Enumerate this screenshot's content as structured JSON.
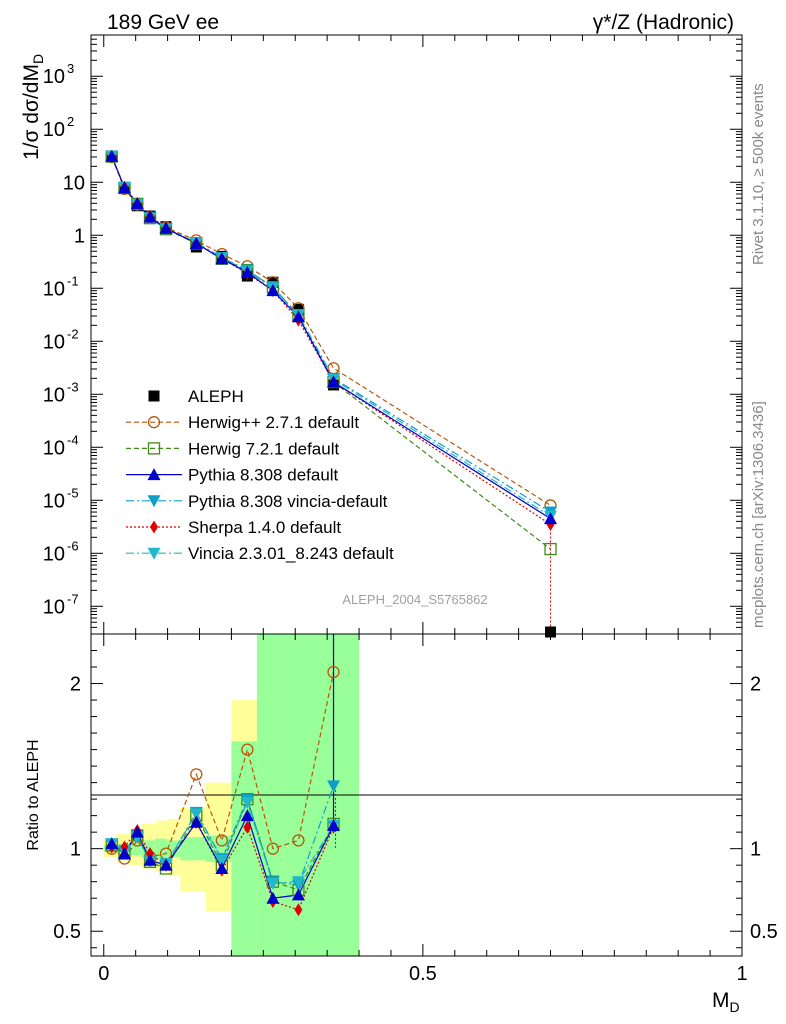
{
  "header": {
    "left_title": "189 GeV ee",
    "right_title": "γ*/Z (Hadronic)"
  },
  "side_labels": {
    "rivet": "Rivet 3.1.10, ≥ 500k events",
    "mcplots": "mcplots.cern.ch [arXiv:1306.3436]"
  },
  "watermark": "ALEPH_2004_S5765862",
  "chart_data": [
    {
      "type": "scatter",
      "title": "189 GeV ee",
      "ylabel": "1/σ dσ/dM_D",
      "yscale": "log",
      "ylim": [
        3e-08,
        6000
      ],
      "xlim": [
        -0.02,
        1.0
      ],
      "yticks": [
        {
          "v": 1e-07,
          "base": "10",
          "exp": "-7"
        },
        {
          "v": 1e-06,
          "base": "10",
          "exp": "-6"
        },
        {
          "v": 1e-05,
          "base": "10",
          "exp": "-5"
        },
        {
          "v": 0.0001,
          "base": "10",
          "exp": "-4"
        },
        {
          "v": 0.001,
          "base": "10",
          "exp": "-3"
        },
        {
          "v": 0.01,
          "base": "10",
          "exp": "-2"
        },
        {
          "v": 0.1,
          "base": "10",
          "exp": "-1"
        },
        {
          "v": 1,
          "base": "1",
          "exp": ""
        },
        {
          "v": 10,
          "base": "10",
          "exp": ""
        },
        {
          "v": 100,
          "base": "10",
          "exp": "2"
        },
        {
          "v": 1000,
          "base": "10",
          "exp": "3"
        }
      ],
      "x": [
        0.0125,
        0.0325,
        0.0525,
        0.0725,
        0.0975,
        0.145,
        0.185,
        0.225,
        0.265,
        0.305,
        0.36,
        0.7
      ],
      "series": [
        {
          "name": "ALEPH",
          "color": "#000000",
          "marker": "square-filled",
          "dash": "none",
          "values": [
            30,
            8.0,
            3.6,
            2.3,
            1.45,
            0.6,
            0.4,
            0.17,
            0.13,
            0.04,
            0.0015,
            3e-08
          ]
        },
        {
          "name": "Herwig++ 2.7.1 default",
          "color": "#b8560a",
          "marker": "circle-open",
          "dash": "5,3",
          "values": [
            30,
            7.5,
            3.8,
            2.2,
            1.4,
            0.8,
            0.44,
            0.26,
            0.13,
            0.042,
            0.0031,
            8e-06
          ]
        },
        {
          "name": "Herwig 7.2.1 default",
          "color": "#3f8a1a",
          "marker": "square-open",
          "dash": "5,3",
          "values": [
            30.5,
            7.8,
            3.9,
            2.1,
            1.3,
            0.7,
            0.36,
            0.22,
            0.105,
            0.03,
            0.0017,
            1.2e-06
          ]
        },
        {
          "name": "Pythia 8.308 default",
          "color": "#0000cc",
          "marker": "triangle-up",
          "dash": "none",
          "values": [
            31,
            7.8,
            3.95,
            2.2,
            1.35,
            0.7,
            0.36,
            0.2,
            0.09,
            0.029,
            0.0017,
            4.5e-06
          ]
        },
        {
          "name": "Pythia 8.308 vincia-default",
          "color": "#0f9fc6",
          "marker": "triangle-down",
          "dash": "8,3,2,3",
          "values": [
            31,
            7.9,
            3.85,
            2.15,
            1.33,
            0.73,
            0.38,
            0.22,
            0.105,
            0.032,
            0.002,
            6e-06
          ]
        },
        {
          "name": "Sherpa 1.4.0 default",
          "color": "#e00000",
          "marker": "diamond",
          "dash": "2,2",
          "values": [
            30.5,
            8.1,
            4.0,
            2.3,
            1.36,
            0.7,
            0.36,
            0.19,
            0.09,
            0.025,
            0.0017,
            3.5e-06
          ]
        },
        {
          "name": "Vincia 2.3.01_8.243 default",
          "color": "#22b8cc",
          "marker": "triangle-down",
          "dash": "8,3,2,3",
          "values": [
            31,
            7.9,
            3.8,
            2.1,
            1.32,
            0.72,
            0.37,
            0.21,
            0.1,
            0.031,
            0.0019,
            5e-06
          ]
        }
      ]
    },
    {
      "type": "line",
      "ylabel": "Ratio to ALEPH",
      "xlabel": "M_D",
      "ylim": [
        0.35,
        2.3
      ],
      "xlim": [
        -0.02,
        1.0
      ],
      "xticks": [
        {
          "v": 0,
          "label": "0"
        },
        {
          "v": 0.5,
          "label": "0.5"
        },
        {
          "v": 1,
          "label": "1"
        }
      ],
      "yticks": [
        {
          "v": 0.5,
          "label": "0.5"
        },
        {
          "v": 1,
          "label": "1"
        },
        {
          "v": 2,
          "label": "2"
        }
      ],
      "bin_edges": [
        0,
        0.02,
        0.04,
        0.06,
        0.08,
        0.1,
        0.12,
        0.16,
        0.2,
        0.24,
        0.28,
        0.32,
        0.4
      ],
      "bands": {
        "stat_color": "#99ff99",
        "total_color": "#ffff99",
        "stat": [
          [
            0.98,
            1.02
          ],
          [
            0.97,
            1.03
          ],
          [
            0.96,
            1.04
          ],
          [
            0.95,
            1.05
          ],
          [
            0.94,
            1.06
          ],
          [
            0.95,
            1.05
          ],
          [
            0.93,
            1.07
          ],
          [
            0.92,
            1.08
          ],
          [
            0.35,
            1.65
          ],
          [
            0.35,
            2.3
          ],
          [
            0.35,
            2.3
          ],
          [
            0.35,
            2.3
          ]
        ],
        "total": [
          [
            0.95,
            1.05
          ],
          [
            0.92,
            1.09
          ],
          [
            0.9,
            1.12
          ],
          [
            0.88,
            1.15
          ],
          [
            0.86,
            1.17
          ],
          [
            0.84,
            1.18
          ],
          [
            0.74,
            1.25
          ],
          [
            0.62,
            1.4
          ],
          [
            0.56,
            1.9
          ],
          [
            0.35,
            2.0
          ],
          [
            0.35,
            2.3
          ],
          [
            0.35,
            2.3
          ]
        ]
      },
      "x": [
        0.0125,
        0.0325,
        0.0525,
        0.0725,
        0.0975,
        0.145,
        0.185,
        0.225,
        0.265,
        0.305,
        0.36
      ],
      "series": [
        {
          "name": "Herwig++ 2.7.1 default",
          "values": [
            1.0,
            0.94,
            1.05,
            0.95,
            0.97,
            1.45,
            1.05,
            1.6,
            1.0,
            1.05,
            2.07
          ]
        },
        {
          "name": "Herwig 7.2.1 default",
          "values": [
            1.02,
            0.97,
            1.08,
            0.92,
            0.88,
            1.2,
            0.9,
            1.3,
            0.8,
            0.75,
            1.15
          ]
        },
        {
          "name": "Pythia 8.308 default",
          "values": [
            1.03,
            0.97,
            1.1,
            0.93,
            0.9,
            1.16,
            0.88,
            1.2,
            0.7,
            0.72,
            1.14
          ]
        },
        {
          "name": "Pythia 8.308 vincia-default",
          "values": [
            1.03,
            0.98,
            1.08,
            0.92,
            0.9,
            1.22,
            0.94,
            1.3,
            0.8,
            0.78,
            1.38
          ]
        },
        {
          "name": "Sherpa 1.4.0 default",
          "values": [
            1.01,
            1.01,
            1.11,
            0.97,
            0.9,
            1.16,
            0.87,
            1.13,
            0.68,
            0.63,
            1.13
          ]
        },
        {
          "name": "Vincia 2.3.01_8.243 default",
          "values": [
            1.03,
            0.99,
            1.07,
            0.92,
            0.91,
            1.21,
            0.93,
            1.28,
            0.79,
            0.8,
            1.14
          ]
        }
      ]
    }
  ]
}
